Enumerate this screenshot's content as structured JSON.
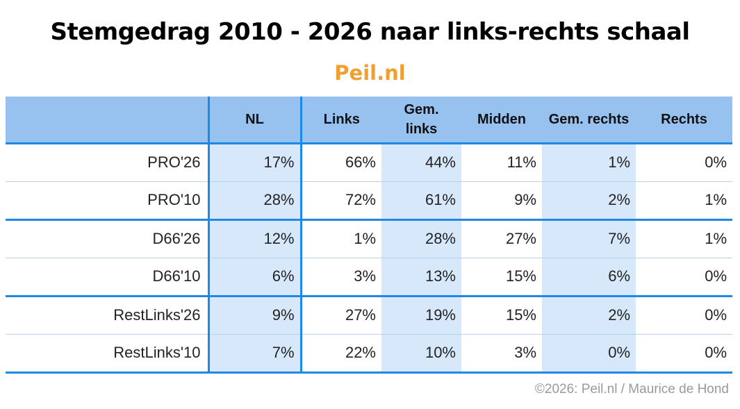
{
  "title": "Stemgedrag 2010 - 2026 naar links-rechts schaal",
  "subtitle": "Peil.nl",
  "footer": "©2026: Peil.nl / Maurice de Hond",
  "chart_data": {
    "type": "table",
    "columns": [
      "",
      "NL",
      "Links",
      "Gem. links",
      "Midden",
      "Gem. rechts",
      "Rechts"
    ],
    "rows": [
      {
        "label": "PRO'26",
        "values": [
          "17%",
          "66%",
          "44%",
          "11%",
          "1%",
          "0%"
        ]
      },
      {
        "label": "PRO'10",
        "values": [
          "28%",
          "72%",
          "61%",
          "9%",
          "2%",
          "1%"
        ]
      },
      {
        "label": "D66'26",
        "values": [
          "12%",
          "1%",
          "28%",
          "27%",
          "7%",
          "1%"
        ]
      },
      {
        "label": "D66'10",
        "values": [
          "6%",
          "3%",
          "13%",
          "15%",
          "6%",
          "0%"
        ]
      },
      {
        "label": "RestLinks'26",
        "values": [
          "9%",
          "27%",
          "19%",
          "15%",
          "2%",
          "0%"
        ]
      },
      {
        "label": "RestLinks'10",
        "values": [
          "7%",
          "22%",
          "10%",
          "3%",
          "0%",
          "0%"
        ]
      }
    ]
  }
}
